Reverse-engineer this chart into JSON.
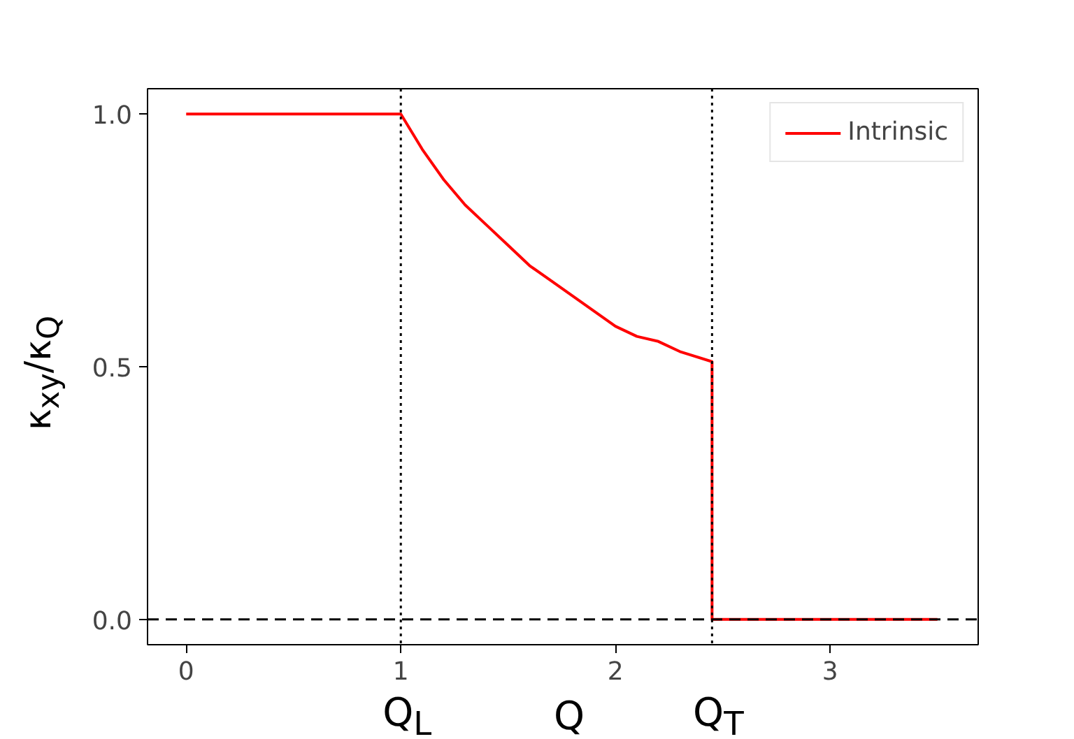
{
  "chart_data": {
    "type": "line",
    "ylabel": "κ$_{xy}$/κ$_{Q}$",
    "x": [
      0,
      1,
      1.1,
      1.2,
      1.3,
      1.4,
      1.5,
      1.6,
      1.7,
      1.8,
      1.9,
      2.0,
      2.1,
      2.2,
      2.3,
      2.45,
      2.45,
      3.5
    ],
    "series": [
      {
        "name": "Intrinsic",
        "color": "#ff0000",
        "values": [
          1,
          1,
          0.93,
          0.87,
          0.82,
          0.78,
          0.74,
          0.7,
          0.67,
          0.64,
          0.61,
          0.58,
          0.56,
          0.55,
          0.53,
          0.51,
          0,
          0
        ]
      }
    ],
    "xlim": [
      -0.18,
      3.69
    ],
    "ylim": [
      -0.05,
      1.05
    ],
    "xticks": [
      0,
      1,
      2,
      3
    ],
    "yticks": [
      {
        "value": 0.0,
        "label": "0.0"
      },
      {
        "value": 0.5,
        "label": "0.5"
      },
      {
        "value": 1.0,
        "label": "1.0"
      }
    ],
    "xlabel": "Q",
    "ref_lines": [
      {
        "axis": "x",
        "value": 1,
        "color": "#000000",
        "line_style": "dotted",
        "label": "Q$_{L}$"
      },
      {
        "axis": "x",
        "value": 2.45,
        "color": "#000000",
        "line_style": "dotted",
        "label": "Q$_{T}$"
      },
      {
        "axis": "y",
        "value": 0,
        "color": "#000000",
        "line_style": "dashed"
      }
    ],
    "legend": "top right",
    "grid": false
  }
}
